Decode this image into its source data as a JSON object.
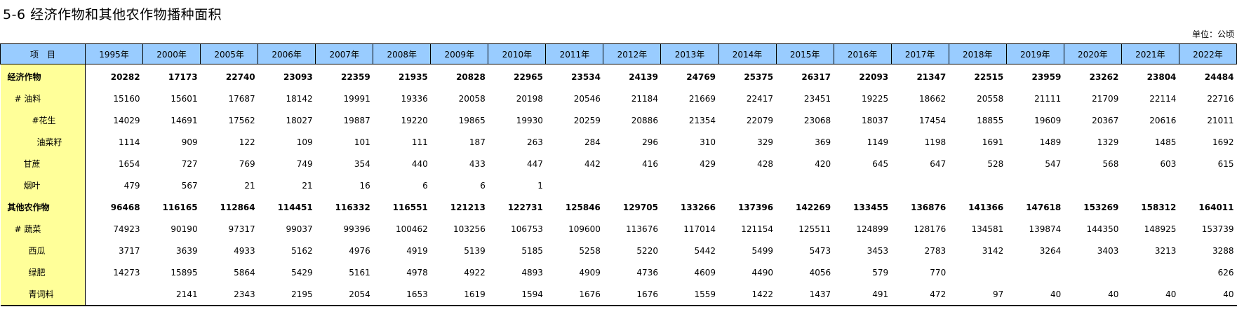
{
  "title": "5-6 经济作物和其他农作物播种面积",
  "unit": "单位：公顷",
  "header": {
    "item": "项　目",
    "years": [
      "1995年",
      "2000年",
      "2005年",
      "2006年",
      "2007年",
      "2008年",
      "2009年",
      "2010年",
      "2011年",
      "2012年",
      "2013年",
      "2014年",
      "2015年",
      "2016年",
      "2017年",
      "2018年",
      "2019年",
      "2020年",
      "2021年",
      "2022年"
    ]
  },
  "rows": [
    {
      "label": "经济作物",
      "bold": true,
      "indent": 0,
      "values": [
        "20282",
        "17173",
        "22740",
        "23093",
        "22359",
        "21935",
        "20828",
        "22965",
        "23534",
        "24139",
        "24769",
        "25375",
        "26317",
        "22093",
        "21347",
        "22515",
        "23959",
        "23262",
        "23804",
        "24484"
      ]
    },
    {
      "label": "# 油料",
      "bold": false,
      "indent": 10,
      "values": [
        "15160",
        "15601",
        "17687",
        "18142",
        "19991",
        "19336",
        "20058",
        "20198",
        "20546",
        "21184",
        "21669",
        "22417",
        "23451",
        "19225",
        "18662",
        "20558",
        "21111",
        "21709",
        "22114",
        "22716"
      ]
    },
    {
      "label": "#花生",
      "bold": false,
      "indent": 35,
      "values": [
        "14029",
        "14691",
        "17562",
        "18027",
        "19887",
        "19220",
        "19865",
        "19930",
        "20259",
        "20886",
        "21354",
        "22079",
        "23068",
        "18037",
        "17454",
        "18855",
        "19609",
        "20367",
        "20616",
        "21011"
      ]
    },
    {
      "label": "油菜籽",
      "bold": false,
      "indent": 42,
      "values": [
        "1114",
        "909",
        "122",
        "109",
        "101",
        "111",
        "187",
        "263",
        "284",
        "296",
        "310",
        "329",
        "369",
        "1149",
        "1198",
        "1691",
        "1489",
        "1329",
        "1485",
        "1692"
      ]
    },
    {
      "label": "甘蔗",
      "bold": false,
      "indent": 23,
      "values": [
        "1654",
        "727",
        "769",
        "749",
        "354",
        "440",
        "433",
        "447",
        "442",
        "416",
        "429",
        "428",
        "420",
        "645",
        "647",
        "528",
        "547",
        "568",
        "603",
        "615"
      ]
    },
    {
      "label": "烟叶",
      "bold": false,
      "indent": 23,
      "values": [
        "479",
        "567",
        "21",
        "21",
        "16",
        "6",
        "6",
        "1",
        "",
        "",
        "",
        "",
        "",
        "",
        "",
        "",
        "",
        "",
        "",
        ""
      ]
    },
    {
      "label": "其他农作物",
      "bold": true,
      "indent": 0,
      "values": [
        "96468",
        "116165",
        "112864",
        "114451",
        "116332",
        "116551",
        "121213",
        "122731",
        "125846",
        "129705",
        "133266",
        "137396",
        "142269",
        "133455",
        "136876",
        "141366",
        "147618",
        "153269",
        "158312",
        "164011"
      ]
    },
    {
      "label": "# 蔬菜",
      "bold": false,
      "indent": 10,
      "values": [
        "74923",
        "90190",
        "97317",
        "99037",
        "99396",
        "100462",
        "103256",
        "106753",
        "109600",
        "113676",
        "117014",
        "121154",
        "125511",
        "124899",
        "128176",
        "134581",
        "139874",
        "144350",
        "148925",
        "153739"
      ]
    },
    {
      "label": "西瓜",
      "bold": false,
      "indent": 30,
      "values": [
        "3717",
        "3639",
        "4933",
        "5162",
        "4976",
        "4919",
        "5139",
        "5185",
        "5258",
        "5220",
        "5442",
        "5499",
        "5473",
        "3453",
        "2783",
        "3142",
        "3264",
        "3403",
        "3213",
        "3288"
      ]
    },
    {
      "label": "绿肥",
      "bold": false,
      "indent": 30,
      "values": [
        "14273",
        "15895",
        "5864",
        "5429",
        "5161",
        "4978",
        "4922",
        "4893",
        "4909",
        "4736",
        "4609",
        "4490",
        "4056",
        "579",
        "770",
        "",
        "",
        "",
        "",
        "626"
      ]
    },
    {
      "label": "青词料",
      "bold": false,
      "indent": 30,
      "values": [
        "",
        "2141",
        "2343",
        "2195",
        "2054",
        "1653",
        "1619",
        "1594",
        "1676",
        "1676",
        "1559",
        "1422",
        "1437",
        "491",
        "472",
        "97",
        "40",
        "40",
        "40",
        "40"
      ]
    }
  ]
}
